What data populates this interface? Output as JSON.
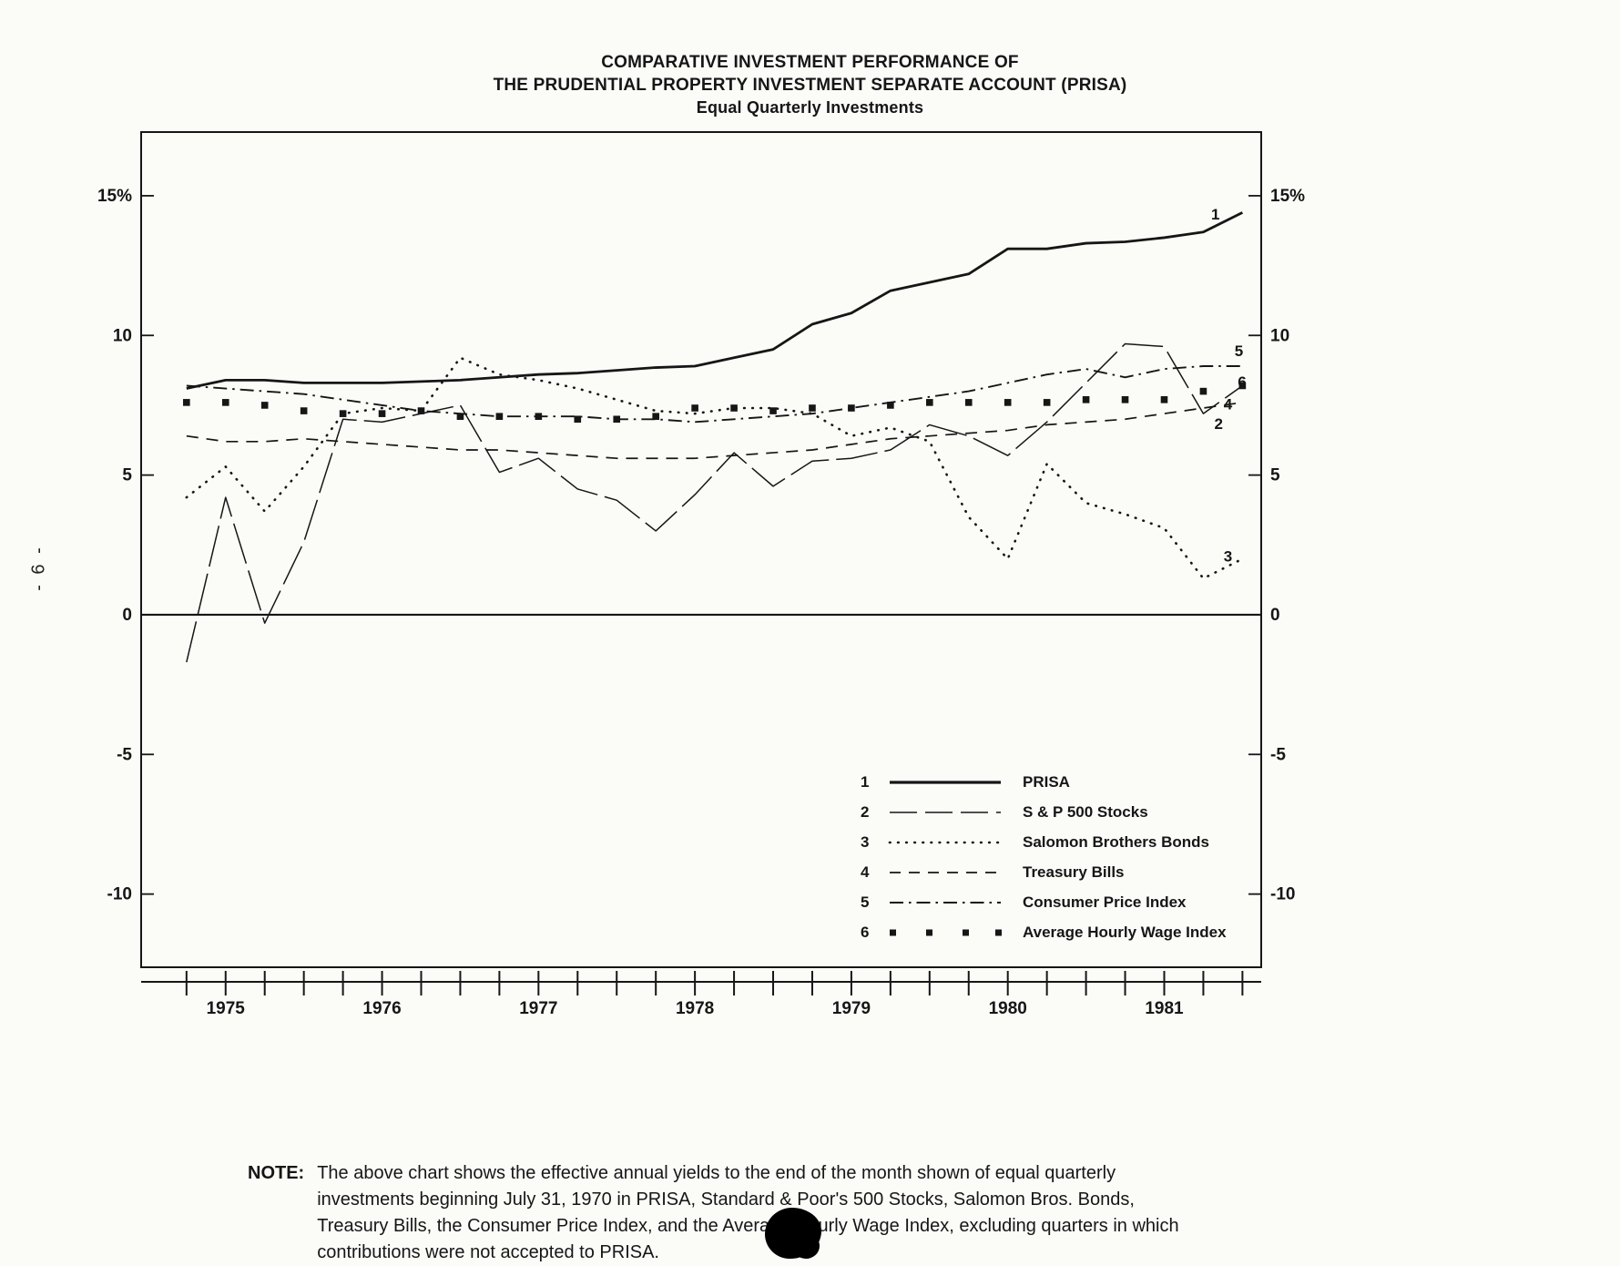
{
  "page_number": "- 6 -",
  "title": {
    "line1": "COMPARATIVE INVESTMENT PERFORMANCE OF",
    "line2": "THE PRUDENTIAL PROPERTY INVESTMENT SEPARATE ACCOUNT (PRISA)",
    "line3": "Equal Quarterly Investments"
  },
  "note": {
    "label": "NOTE:",
    "lines": [
      "The above chart shows the effective annual yields to the end of the month shown of equal quarterly",
      "investments beginning July 31, 1970 in PRISA, Standard & Poor's 500 Stocks, Salomon Bros. Bonds,",
      "Treasury Bills, the Consumer Price Index, and the Average Hourly Wage Index, excluding quarters in which",
      "contributions were not accepted to PRISA."
    ]
  },
  "chart_data": {
    "type": "line",
    "title": "COMPARATIVE INVESTMENT PERFORMANCE OF THE PRUDENTIAL PROPERTY INVESTMENT SEPARATE ACCOUNT (PRISA) - Equal Quarterly Investments",
    "xlabel": "",
    "ylabel": "",
    "grid": false,
    "legend_position": "inside-lower-right",
    "xlim": [
      1974.46,
      1981.62
    ],
    "ylim": [
      -12.62,
      17.28
    ],
    "y_ticks": [
      {
        "value": 15,
        "label": "15%"
      },
      {
        "value": 10,
        "label": "10"
      },
      {
        "value": 5,
        "label": "5"
      },
      {
        "value": 0,
        "label": "0"
      },
      {
        "value": -5,
        "label": "-5"
      },
      {
        "value": -10,
        "label": "-10"
      }
    ],
    "x_tick_years": [
      "1975",
      "1976",
      "1977",
      "1978",
      "1979",
      "1980",
      "1981"
    ],
    "x": [
      1974.75,
      1975.0,
      1975.25,
      1975.5,
      1975.75,
      1976.0,
      1976.25,
      1976.5,
      1976.75,
      1977.0,
      1977.25,
      1977.5,
      1977.75,
      1978.0,
      1978.25,
      1978.5,
      1978.75,
      1979.0,
      1979.25,
      1979.5,
      1979.75,
      1980.0,
      1980.25,
      1980.5,
      1980.75,
      1981.0,
      1981.25,
      1981.5
    ],
    "series": [
      {
        "num": "1",
        "name": "PRISA",
        "line": "solid",
        "values": [
          8.1,
          8.4,
          8.4,
          8.3,
          8.3,
          8.3,
          8.35,
          8.4,
          8.5,
          8.6,
          8.65,
          8.75,
          8.85,
          8.9,
          9.2,
          9.5,
          10.4,
          10.8,
          11.6,
          11.9,
          12.2,
          13.1,
          13.1,
          13.3,
          13.35,
          13.5,
          13.7,
          14.4
        ],
        "end_label": {
          "x": 1981.3,
          "y": 14.35
        }
      },
      {
        "num": "2",
        "name": "S & P 500 Stocks",
        "line": "longdash",
        "values": [
          -1.7,
          4.2,
          -0.3,
          2.6,
          7.0,
          6.9,
          7.2,
          7.5,
          5.1,
          5.6,
          4.5,
          4.1,
          3.0,
          4.3,
          5.8,
          4.6,
          5.5,
          5.6,
          5.9,
          6.8,
          6.4,
          5.7,
          6.9,
          8.3,
          9.7,
          9.6,
          7.2,
          8.2
        ],
        "end_label": {
          "x": 1981.32,
          "y": 6.85
        }
      },
      {
        "num": "3",
        "name": "Salomon Brothers Bonds",
        "line": "dotted",
        "values": [
          4.2,
          5.3,
          3.7,
          5.3,
          7.2,
          7.4,
          7.3,
          9.2,
          8.6,
          8.4,
          8.1,
          7.7,
          7.3,
          7.2,
          7.4,
          7.4,
          7.2,
          6.4,
          6.7,
          6.2,
          3.5,
          2.0,
          5.4,
          4.0,
          3.6,
          3.1,
          1.3,
          2.0
        ],
        "end_label": {
          "x": 1981.38,
          "y": 2.1
        }
      },
      {
        "num": "4",
        "name": "Treasury Bills",
        "line": "dashed",
        "values": [
          6.4,
          6.2,
          6.2,
          6.3,
          6.2,
          6.1,
          6.0,
          5.9,
          5.9,
          5.8,
          5.7,
          5.6,
          5.6,
          5.6,
          5.7,
          5.8,
          5.9,
          6.1,
          6.3,
          6.4,
          6.5,
          6.6,
          6.8,
          6.9,
          7.0,
          7.2,
          7.4,
          7.6
        ],
        "end_label": {
          "x": 1981.38,
          "y": 7.55
        }
      },
      {
        "num": "5",
        "name": "Consumer Price Index",
        "line": "dashdot",
        "values": [
          8.2,
          8.1,
          8.0,
          7.9,
          7.7,
          7.5,
          7.3,
          7.2,
          7.1,
          7.1,
          7.1,
          7.0,
          7.0,
          6.9,
          7.0,
          7.1,
          7.2,
          7.4,
          7.6,
          7.8,
          8.0,
          8.3,
          8.6,
          8.8,
          8.5,
          8.8,
          8.9,
          8.9
        ],
        "end_label": {
          "x": 1981.45,
          "y": 9.45
        }
      },
      {
        "num": "6",
        "name": "Average Hourly Wage Index",
        "line": "squares",
        "values": [
          7.6,
          7.6,
          7.5,
          7.3,
          7.2,
          7.2,
          7.3,
          7.1,
          7.1,
          7.1,
          7.0,
          7.0,
          7.1,
          7.4,
          7.4,
          7.3,
          7.4,
          7.4,
          7.5,
          7.6,
          7.6,
          7.6,
          7.6,
          7.7,
          7.7,
          7.7,
          8.0,
          8.2
        ],
        "end_label": {
          "x": 1981.47,
          "y": 8.35
        }
      }
    ]
  }
}
